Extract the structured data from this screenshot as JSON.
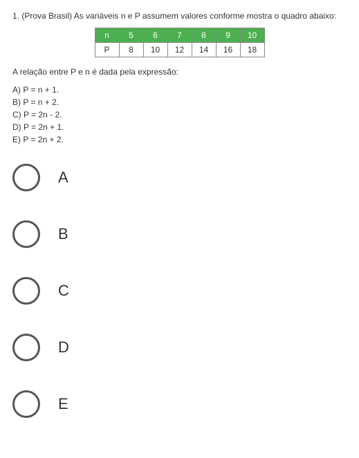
{
  "question": {
    "number": "1.",
    "source": "(Prova Brasil)",
    "text": "As variáveis n e P assumem valores conforme mostra o quadro abaixo:"
  },
  "table": {
    "header_label": "n",
    "header_values": [
      "5",
      "6",
      "7",
      "8",
      "9",
      "10"
    ],
    "data_label": "P",
    "data_values": [
      "8",
      "10",
      "12",
      "14",
      "16",
      "18"
    ],
    "header_bg": "#4caf50",
    "header_fg": "#ffffff"
  },
  "relation_text": "A relação entre P e n é dada pela expressão:",
  "formulas": {
    "a": "A) P = n + 1.",
    "b": "B) P = n + 2.",
    "c": "C) P = 2n - 2.",
    "d": "D) P = 2n + 1.",
    "e": "E) P = 2n + 2."
  },
  "options": {
    "a": "A",
    "b": "B",
    "c": "C",
    "d": "D",
    "e": "E"
  }
}
